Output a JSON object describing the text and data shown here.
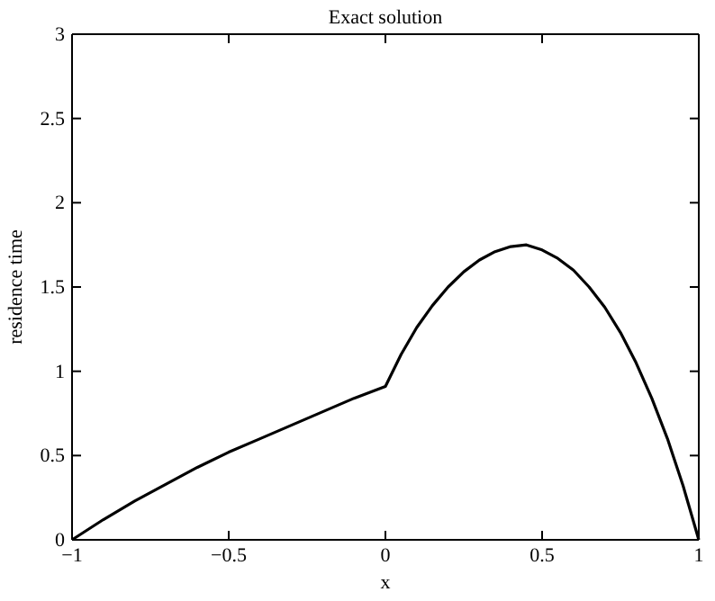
{
  "chart_data": {
    "type": "line",
    "title": "Exact solution",
    "xlabel": "x",
    "ylabel": "residence time",
    "x": [
      -1,
      -0.9,
      -0.8,
      -0.7,
      -0.6,
      -0.5,
      -0.4,
      -0.3,
      -0.2,
      -0.1,
      0,
      0.05,
      0.1,
      0.15,
      0.2,
      0.25,
      0.3,
      0.35,
      0.4,
      0.45,
      0.5,
      0.55,
      0.6,
      0.65,
      0.7,
      0.75,
      0.8,
      0.85,
      0.9,
      0.95,
      1
    ],
    "series": [
      {
        "color": "#000000",
        "values": [
          0,
          0.12,
          0.23,
          0.33,
          0.43,
          0.52,
          0.6,
          0.68,
          0.76,
          0.84,
          0.91,
          1.1,
          1.26,
          1.39,
          1.5,
          1.59,
          1.66,
          1.71,
          1.74,
          1.75,
          1.72,
          1.67,
          1.6,
          1.5,
          1.38,
          1.23,
          1.05,
          0.84,
          0.6,
          0.32,
          0
        ]
      }
    ],
    "xlim": [
      -1,
      1
    ],
    "xticks": [
      {
        "value": -1,
        "label": "−1"
      },
      {
        "value": -0.5,
        "label": "−0.5"
      },
      0,
      0.5,
      1
    ],
    "ylim": [
      0,
      3
    ],
    "yticks": [
      0,
      0.5,
      1,
      1.5,
      2,
      2.5,
      3
    ],
    "grid": false,
    "marker": "none",
    "line_style": "solid"
  }
}
